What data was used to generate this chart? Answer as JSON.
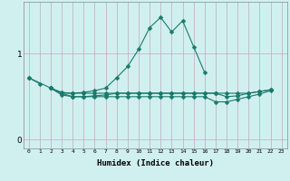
{
  "xlabel": "Humidex (Indice chaleur)",
  "bg_color": "#d0f0f0",
  "grid_color": "#c0a8c0",
  "line_color": "#1a7a6a",
  "x": [
    0,
    1,
    2,
    3,
    4,
    5,
    6,
    7,
    8,
    9,
    10,
    11,
    12,
    13,
    14,
    15,
    16,
    17,
    18,
    19,
    20,
    21,
    22,
    23
  ],
  "line1": [
    0.72,
    0.65,
    null,
    null,
    null,
    null,
    null,
    null,
    null,
    null,
    null,
    null,
    null,
    null,
    null,
    null,
    null,
    null,
    null,
    null,
    null,
    null,
    null,
    null
  ],
  "line2": [
    0.72,
    null,
    0.6,
    0.55,
    0.54,
    0.55,
    0.57,
    0.6,
    0.72,
    0.85,
    1.05,
    1.3,
    1.42,
    1.25,
    1.38,
    1.08,
    0.78,
    null,
    null,
    null,
    null,
    null,
    null,
    null
  ],
  "line3": [
    null,
    null,
    0.6,
    0.52,
    0.5,
    0.5,
    0.51,
    0.52,
    0.54,
    0.54,
    0.54,
    0.54,
    0.54,
    0.54,
    0.54,
    0.54,
    0.54,
    0.54,
    0.5,
    0.51,
    0.54,
    0.56,
    0.58,
    null
  ],
  "line4": [
    null,
    null,
    0.6,
    0.54,
    0.5,
    0.5,
    0.5,
    0.5,
    0.5,
    0.5,
    0.5,
    0.5,
    0.5,
    0.5,
    0.5,
    0.5,
    0.5,
    0.44,
    0.44,
    0.47,
    0.5,
    0.53,
    0.57,
    null
  ],
  "line5": [
    null,
    null,
    0.6,
    0.54,
    0.54,
    0.54,
    0.54,
    0.54,
    0.54,
    0.54,
    0.54,
    0.54,
    0.54,
    0.54,
    0.54,
    0.54,
    0.54,
    0.54,
    0.54,
    0.54,
    0.54,
    0.56,
    0.58,
    null
  ],
  "ylim": [
    -0.1,
    1.6
  ],
  "yticks": [
    0,
    1
  ],
  "xticks": [
    0,
    1,
    2,
    3,
    4,
    5,
    6,
    7,
    8,
    9,
    10,
    11,
    12,
    13,
    14,
    15,
    16,
    17,
    18,
    19,
    20,
    21,
    22,
    23
  ]
}
